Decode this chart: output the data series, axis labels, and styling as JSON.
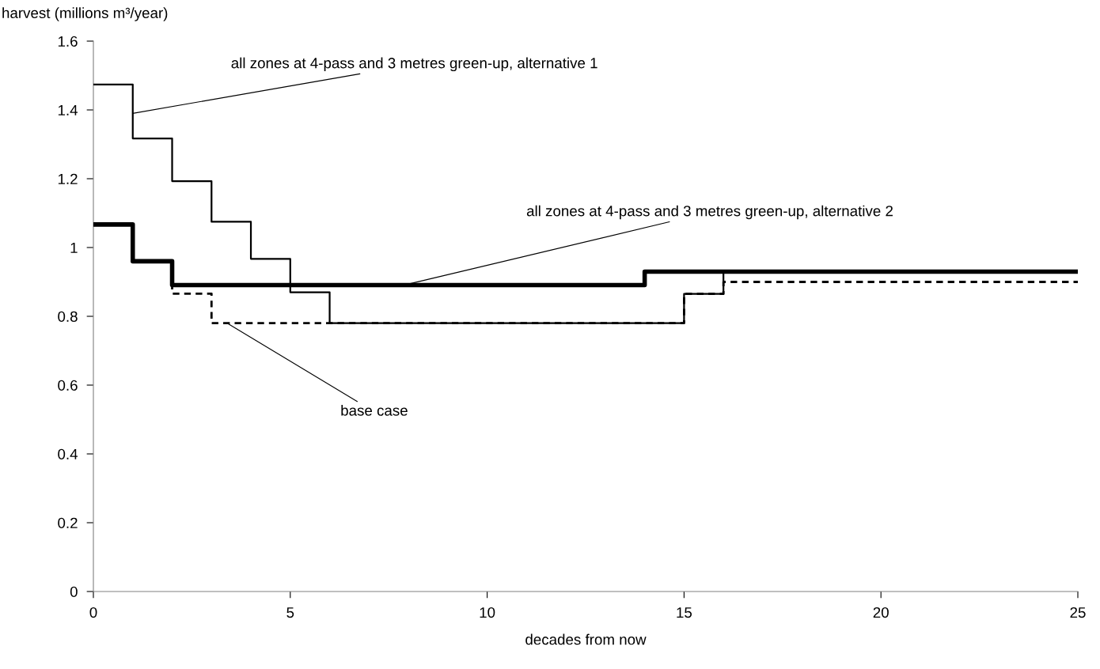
{
  "chart_data": {
    "type": "step",
    "xlabel": "decades from now",
    "ylabel": "harvest (millions m³/year)",
    "x": [
      0,
      1,
      2,
      3,
      4,
      5,
      6,
      7,
      8,
      9,
      10,
      11,
      12,
      13,
      14,
      15,
      16,
      17,
      18,
      19,
      20,
      21,
      22,
      23,
      24,
      25
    ],
    "series": [
      {
        "color": "#000000",
        "line_style": "dashed",
        "values": [
          1.067,
          0.96,
          0.866,
          0.78,
          0.78,
          0.78,
          0.78,
          0.78,
          0.78,
          0.78,
          0.78,
          0.78,
          0.78,
          0.78,
          0.78,
          0.865,
          0.9,
          0.9,
          0.9,
          0.9,
          0.9,
          0.9,
          0.9,
          0.9,
          0.9,
          0.9
        ]
      },
      {
        "color": "#000000",
        "line_style": "solid",
        "values": [
          1.474,
          1.317,
          1.193,
          1.075,
          0.967,
          0.87,
          0.78,
          0.78,
          0.78,
          0.78,
          0.78,
          0.78,
          0.78,
          0.78,
          0.78,
          0.865,
          0.93,
          0.93,
          0.93,
          0.93,
          0.93,
          0.93,
          0.93,
          0.93,
          0.93,
          0.93
        ]
      },
      {
        "color": "#000000",
        "line_style": "solid",
        "values": [
          1.067,
          0.96,
          0.891,
          0.891,
          0.891,
          0.891,
          0.891,
          0.891,
          0.891,
          0.891,
          0.891,
          0.891,
          0.891,
          0.891,
          0.93,
          0.93,
          0.93,
          0.93,
          0.93,
          0.93,
          0.93,
          0.93,
          0.93,
          0.93,
          0.93,
          0.93
        ]
      }
    ],
    "annotations": [
      {
        "text": "all zones at 4-pass and 3 metres green-up, alternative 1",
        "x": 1,
        "y": 1.39
      },
      {
        "text": "all zones at 4-pass and 3 metres green-up, alternative 2",
        "x": 7.9,
        "y": 0.891
      },
      {
        "text": "base case",
        "x": 3.4,
        "y": 0.78
      }
    ],
    "xlim": [
      0,
      25
    ],
    "xticks": [
      0,
      5,
      10,
      15,
      20,
      25
    ],
    "ylim": [
      0,
      1.6
    ],
    "yticks": [
      0,
      0.2,
      0.4,
      0.6,
      0.8,
      1,
      1.2,
      1.4,
      1.6
    ],
    "grid": false,
    "legend": false,
    "marker": "none"
  }
}
